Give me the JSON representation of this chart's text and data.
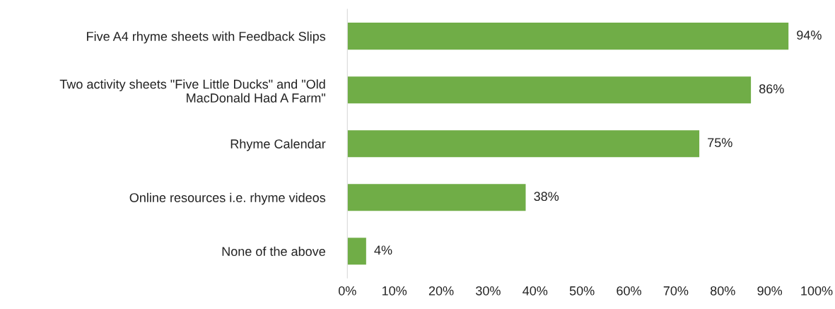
{
  "chart_data": {
    "type": "bar",
    "orientation": "horizontal",
    "categories": [
      "Five A4 rhyme sheets with Feedback Slips",
      "Two activity sheets \"Five Little Ducks\" and \"Old\nMacDonald Had A Farm\"",
      "Rhyme Calendar",
      "Online resources i.e. rhyme videos",
      "None of the above"
    ],
    "values": [
      94,
      86,
      75,
      38,
      4
    ],
    "value_labels": [
      "94%",
      "86%",
      "75%",
      "38%",
      "4%"
    ],
    "color": "#70ad47",
    "xlim": [
      0,
      100
    ],
    "xticks": [
      {
        "value": 0,
        "label": "0%"
      },
      {
        "value": 10,
        "label": "10%"
      },
      {
        "value": 20,
        "label": "20%"
      },
      {
        "value": 30,
        "label": "30%"
      },
      {
        "value": 40,
        "label": "40%"
      },
      {
        "value": 50,
        "label": "50%"
      },
      {
        "value": 60,
        "label": "60%"
      },
      {
        "value": 70,
        "label": "70%"
      },
      {
        "value": 80,
        "label": "80%"
      },
      {
        "value": 90,
        "label": "90%"
      },
      {
        "value": 100,
        "label": "100%"
      }
    ],
    "grid": false,
    "legend": false
  }
}
